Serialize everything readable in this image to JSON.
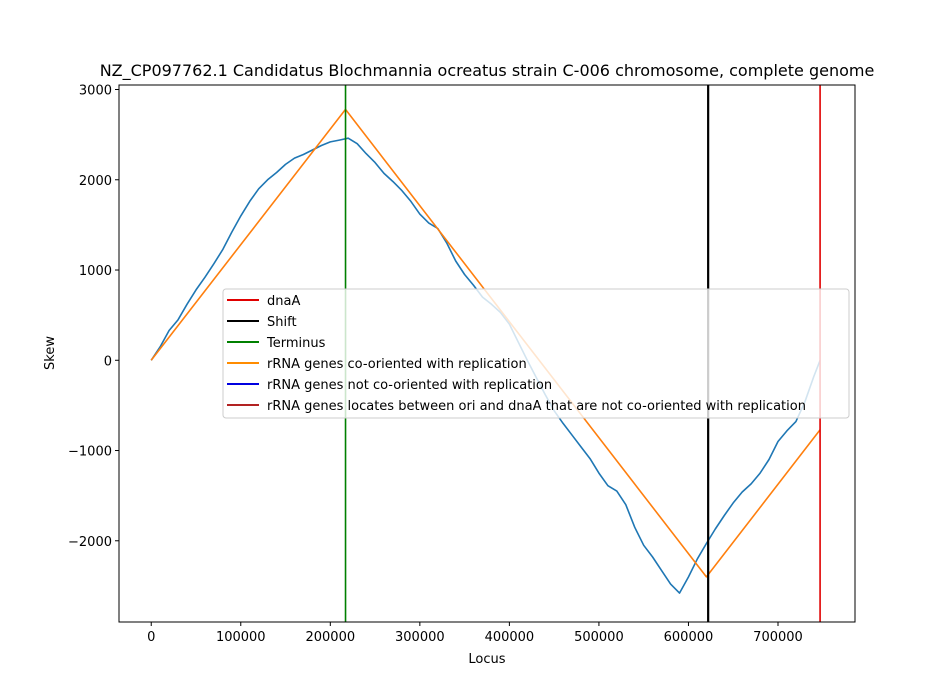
{
  "chart_data": {
    "type": "line",
    "title": "NZ_CP097762.1 Candidatus Blochmannia ocreatus strain C-006 chromosome, complete genome",
    "xlabel": "Locus",
    "ylabel": "Skew",
    "xlim": [
      -36000,
      786000
    ],
    "ylim": [
      -2900,
      3050
    ],
    "xticks": [
      0,
      100000,
      200000,
      300000,
      400000,
      500000,
      600000,
      700000
    ],
    "xtick_labels": [
      "0",
      "100000",
      "200000",
      "300000",
      "400000",
      "500000",
      "600000",
      "700000"
    ],
    "yticks": [
      -2000,
      -1000,
      0,
      1000,
      2000,
      3000
    ],
    "ytick_labels": [
      "−2000",
      "−1000",
      "0",
      "1000",
      "2000",
      "3000"
    ],
    "grid": false,
    "legend_position": "center-right",
    "series": [
      {
        "name": "",
        "color": "#1f77b4",
        "x": [
          0,
          10000,
          20000,
          30000,
          40000,
          50000,
          60000,
          70000,
          80000,
          90000,
          100000,
          110000,
          120000,
          130000,
          140000,
          150000,
          160000,
          170000,
          180000,
          190000,
          200000,
          210000,
          220000,
          230000,
          240000,
          250000,
          260000,
          270000,
          280000,
          290000,
          300000,
          310000,
          320000,
          330000,
          340000,
          350000,
          360000,
          370000,
          380000,
          390000,
          400000,
          410000,
          420000,
          430000,
          440000,
          450000,
          460000,
          470000,
          480000,
          490000,
          500000,
          510000,
          520000,
          530000,
          540000,
          550000,
          560000,
          570000,
          580000,
          590000,
          600000,
          610000,
          620000,
          630000,
          640000,
          650000,
          660000,
          670000,
          680000,
          690000,
          700000,
          710000,
          720000,
          730000,
          740000,
          747000
        ],
        "y": [
          0,
          150,
          330,
          450,
          620,
          780,
          920,
          1070,
          1230,
          1420,
          1600,
          1760,
          1900,
          2000,
          2080,
          2170,
          2240,
          2280,
          2330,
          2380,
          2420,
          2440,
          2460,
          2400,
          2290,
          2190,
          2070,
          1980,
          1880,
          1760,
          1620,
          1520,
          1460,
          1300,
          1100,
          950,
          830,
          700,
          620,
          530,
          400,
          200,
          0,
          -190,
          -380,
          -560,
          -700,
          -830,
          -960,
          -1090,
          -1250,
          -1390,
          -1450,
          -1600,
          -1850,
          -2050,
          -2180,
          -2330,
          -2480,
          -2580,
          -2400,
          -2200,
          -2030,
          -1870,
          -1720,
          -1580,
          -1460,
          -1370,
          -1250,
          -1100,
          -900,
          -780,
          -680,
          -460,
          -180,
          0
        ]
      },
      {
        "name": "rRNA genes co-oriented with replication",
        "color": "#ff7f0e",
        "x": [
          0,
          217000,
          620000,
          747000
        ],
        "y": [
          0,
          2780,
          -2400,
          -770
        ]
      }
    ],
    "vlines": [
      {
        "name": "dnaA",
        "x": 747000,
        "color": "#e00000"
      },
      {
        "name": "Shift",
        "x": 622000,
        "color": "#000000"
      },
      {
        "name": "Terminus",
        "x": 217000,
        "color": "#008000"
      }
    ],
    "legend": [
      {
        "label": "dnaA",
        "color": "#e00000"
      },
      {
        "label": "Shift",
        "color": "#000000"
      },
      {
        "label": "Terminus",
        "color": "#008000"
      },
      {
        "label": "rRNA genes co-oriented with replication",
        "color": "#ff8c00"
      },
      {
        "label": "rRNA genes not co-oriented with replication",
        "color": "#0000e0"
      },
      {
        "label": "rRNA genes locates between ori and dnaA that are not co-oriented with replication",
        "color": "#b22222"
      }
    ]
  }
}
